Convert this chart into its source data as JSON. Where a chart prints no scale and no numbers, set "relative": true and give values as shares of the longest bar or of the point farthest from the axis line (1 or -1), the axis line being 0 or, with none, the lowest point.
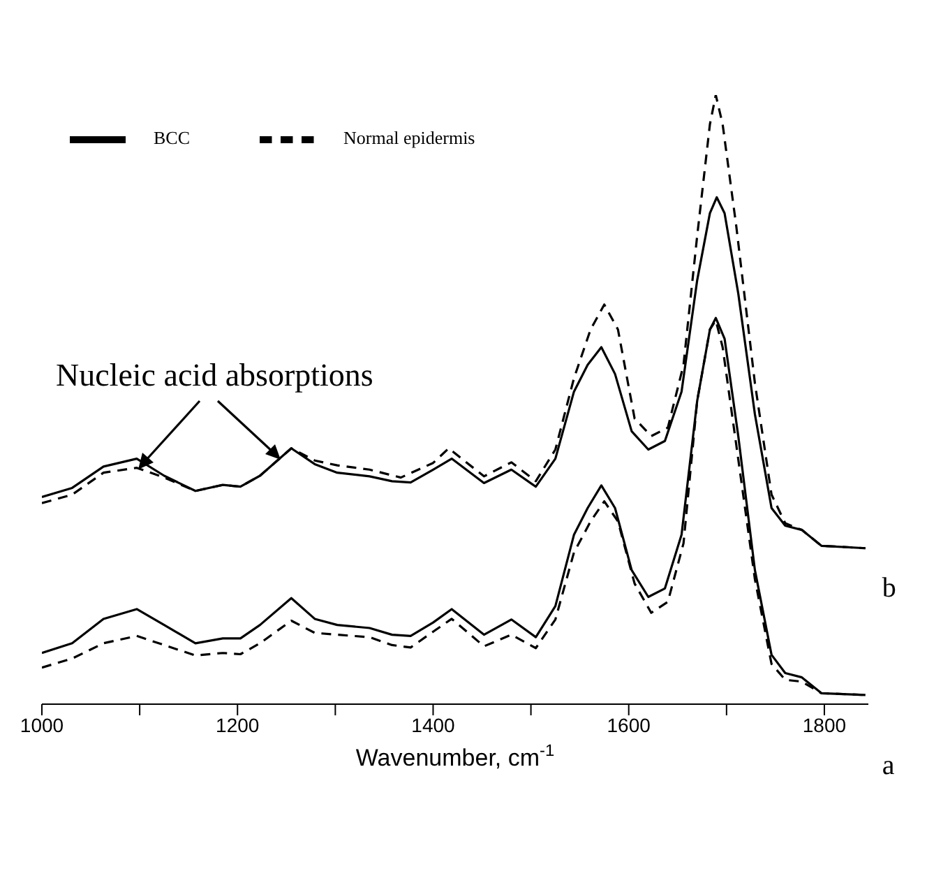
{
  "chart_data": {
    "type": "line",
    "relative": true,
    "xlabel": "Wavenumber, cm$^{-1}$",
    "xlim": [
      1000,
      1845
    ],
    "xticks": [
      1000,
      {
        "value": 1100,
        "label": null
      },
      1200,
      {
        "value": 1300,
        "label": null
      },
      1400,
      {
        "value": 1500,
        "label": null
      },
      1600,
      {
        "value": 1700,
        "label": null
      },
      1800
    ],
    "tick_labels": "x",
    "legend": "top left",
    "marker": "none",
    "annotations": [
      "Nucleic acid absorptions",
      {
        "text": "a",
        "x": 1842,
        "y": 0.015
      },
      {
        "text": "b",
        "x": 1842,
        "y": 0.256
      }
    ],
    "series": [
      {
        "name": "BCC",
        "color": "#000000",
        "line_style": "solid",
        "x": [
          1000,
          1031,
          1063,
          1097,
          1125,
          1157,
          1185,
          1203,
          1223,
          1255,
          1279,
          1302,
          1335,
          1358,
          1377,
          1400,
          1419,
          1452,
          1480,
          1505,
          1525,
          1544,
          1558,
          1572,
          1586,
          1603,
          1620,
          1637,
          1654,
          1670,
          1683,
          1689,
          1698,
          1712,
          1729,
          1746,
          1760,
          1777,
          1797,
          1842
        ],
        "values": [
          0.084,
          0.1,
          0.14,
          0.156,
          0.13,
          0.1,
          0.108,
          0.108,
          0.13,
          0.174,
          0.14,
          0.13,
          0.125,
          0.114,
          0.112,
          0.134,
          0.156,
          0.114,
          0.139,
          0.11,
          0.161,
          0.278,
          0.322,
          0.359,
          0.322,
          0.22,
          0.176,
          0.19,
          0.278,
          0.498,
          0.615,
          0.634,
          0.6,
          0.44,
          0.22,
          0.081,
          0.051,
          0.044,
          0.018,
          0.015
        ]
      },
      {
        "name": "Normal epidermis",
        "color": "#000000",
        "line_style": "dashed",
        "x": [
          1000,
          1031,
          1063,
          1097,
          1125,
          1157,
          1185,
          1203,
          1223,
          1255,
          1279,
          1302,
          1335,
          1358,
          1377,
          1400,
          1419,
          1452,
          1480,
          1505,
          1525,
          1544,
          1561,
          1575,
          1589,
          1606,
          1623,
          1640,
          1656,
          1670,
          1683,
          1689,
          1696,
          1710,
          1729,
          1746,
          1760,
          1777,
          1797,
          1842
        ],
        "values": [
          0.06,
          0.075,
          0.1,
          0.112,
          0.097,
          0.08,
          0.084,
          0.082,
          0.1,
          0.137,
          0.117,
          0.114,
          0.11,
          0.097,
          0.093,
          0.119,
          0.14,
          0.095,
          0.114,
          0.092,
          0.139,
          0.249,
          0.3,
          0.333,
          0.3,
          0.198,
          0.15,
          0.168,
          0.264,
          0.498,
          0.615,
          0.63,
          0.586,
          0.425,
          0.205,
          0.066,
          0.04,
          0.037,
          0.018,
          0.015
        ]
      },
      {
        "color": "#000000",
        "line_style": "solid",
        "x": [
          1000,
          1031,
          1063,
          1097,
          1125,
          1157,
          1185,
          1203,
          1223,
          1255,
          1279,
          1302,
          1335,
          1358,
          1377,
          1400,
          1419,
          1452,
          1480,
          1505,
          1525,
          1544,
          1558,
          1572,
          1586,
          1603,
          1620,
          1637,
          1654,
          1670,
          1683,
          1690,
          1698,
          1712,
          1729,
          1746,
          1760,
          1777,
          1797,
          1842
        ],
        "values": [
          0.34,
          0.355,
          0.39,
          0.403,
          0.375,
          0.35,
          0.36,
          0.357,
          0.375,
          0.42,
          0.394,
          0.38,
          0.374,
          0.366,
          0.364,
          0.385,
          0.403,
          0.363,
          0.385,
          0.357,
          0.403,
          0.513,
          0.557,
          0.586,
          0.542,
          0.448,
          0.418,
          0.432,
          0.513,
          0.696,
          0.806,
          0.832,
          0.806,
          0.674,
          0.476,
          0.322,
          0.293,
          0.286,
          0.26,
          0.256
        ]
      },
      {
        "color": "#000000",
        "line_style": "dashed",
        "x": [
          1000,
          1031,
          1063,
          1097,
          1125,
          1157,
          1185,
          1203,
          1223,
          1255,
          1279,
          1302,
          1335,
          1367,
          1400,
          1416,
          1452,
          1480,
          1505,
          1525,
          1544,
          1561,
          1575,
          1589,
          1606,
          1623,
          1640,
          1656,
          1670,
          1683,
          1689,
          1696,
          1710,
          1729,
          1746,
          1760,
          1777,
          1797,
          1842
        ],
        "values": [
          0.33,
          0.344,
          0.38,
          0.388,
          0.372,
          0.35,
          0.36,
          0.357,
          0.375,
          0.42,
          0.4,
          0.392,
          0.385,
          0.372,
          0.396,
          0.42,
          0.374,
          0.397,
          0.366,
          0.418,
          0.535,
          0.615,
          0.656,
          0.615,
          0.469,
          0.44,
          0.454,
          0.557,
          0.769,
          0.952,
          1,
          0.952,
          0.784,
          0.527,
          0.344,
          0.297,
          0.286,
          0.26,
          0.256
        ]
      }
    ]
  }
}
